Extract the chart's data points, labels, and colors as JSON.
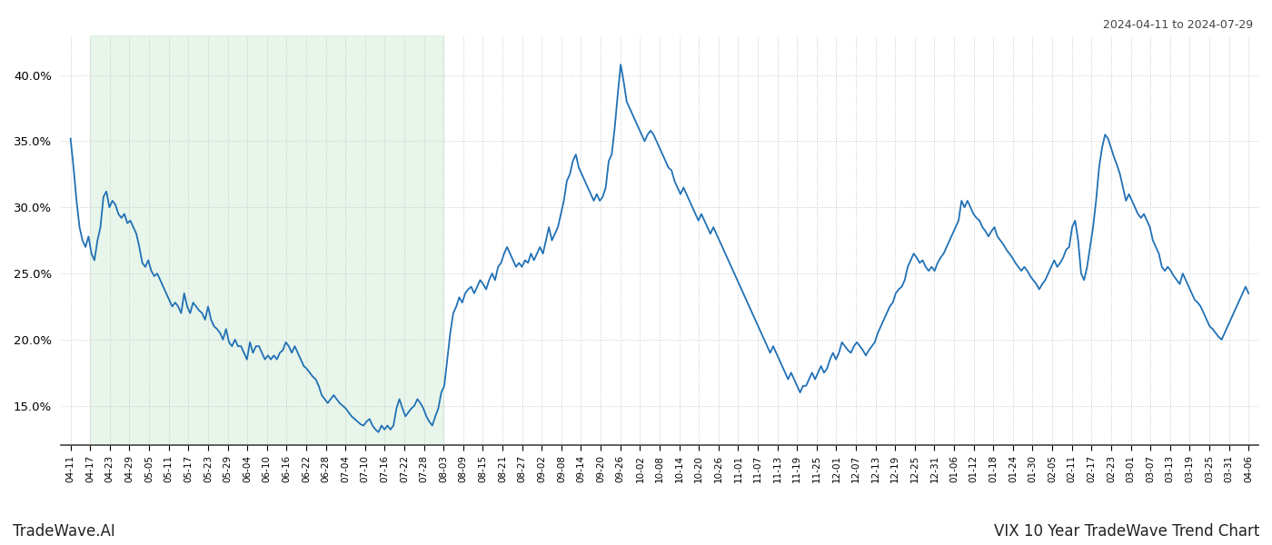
{
  "title_right": "2024-04-11 to 2024-07-29",
  "title_bottom_left": "TradeWave.AI",
  "title_bottom_right": "VIX 10 Year TradeWave Trend Chart",
  "line_color": "#2171b5",
  "shade_color": "#d4edda",
  "shade_alpha": 0.55,
  "background_color": "#ffffff",
  "grid_color": "#c8c8c8",
  "ylim": [
    12.0,
    43.0
  ],
  "yticks": [
    15.0,
    20.0,
    25.0,
    30.0,
    35.0,
    40.0
  ],
  "x_labels": [
    "04-11",
    "04-17",
    "04-23",
    "04-29",
    "05-05",
    "05-11",
    "05-17",
    "05-23",
    "05-29",
    "06-04",
    "06-10",
    "06-16",
    "06-22",
    "06-28",
    "07-04",
    "07-10",
    "07-16",
    "07-22",
    "07-28",
    "08-03",
    "08-09",
    "08-15",
    "08-21",
    "08-27",
    "09-02",
    "09-08",
    "09-14",
    "09-20",
    "09-26",
    "10-02",
    "10-08",
    "10-14",
    "10-20",
    "10-26",
    "11-01",
    "11-07",
    "11-13",
    "11-19",
    "11-25",
    "12-01",
    "12-07",
    "12-13",
    "12-19",
    "12-25",
    "12-31",
    "01-06",
    "01-12",
    "01-18",
    "01-24",
    "01-30",
    "02-05",
    "02-11",
    "02-17",
    "02-23",
    "03-01",
    "03-07",
    "03-13",
    "03-19",
    "03-25",
    "03-31",
    "04-06"
  ],
  "shade_start_label": "04-17",
  "shade_end_label": "08-03",
  "y_values": [
    35.2,
    33.0,
    30.5,
    28.5,
    27.5,
    27.0,
    27.8,
    26.5,
    26.0,
    27.5,
    28.5,
    30.8,
    31.2,
    30.0,
    30.5,
    30.2,
    29.5,
    29.2,
    29.5,
    28.8,
    29.0,
    28.5,
    28.0,
    27.0,
    25.8,
    25.5,
    26.0,
    25.2,
    24.8,
    25.0,
    24.5,
    24.0,
    23.5,
    23.0,
    22.5,
    22.8,
    22.5,
    22.0,
    23.5,
    22.5,
    22.0,
    22.8,
    22.5,
    22.2,
    22.0,
    21.5,
    22.5,
    21.5,
    21.0,
    20.8,
    20.5,
    20.0,
    20.8,
    19.8,
    19.5,
    20.0,
    19.5,
    19.5,
    19.0,
    18.5,
    19.8,
    19.0,
    19.5,
    19.5,
    19.0,
    18.5,
    18.8,
    18.5,
    18.8,
    18.5,
    19.0,
    19.2,
    19.8,
    19.5,
    19.0,
    19.5,
    19.0,
    18.5,
    18.0,
    17.8,
    17.5,
    17.2,
    17.0,
    16.5,
    15.8,
    15.5,
    15.2,
    15.5,
    15.8,
    15.5,
    15.2,
    15.0,
    14.8,
    14.5,
    14.2,
    14.0,
    13.8,
    13.6,
    13.5,
    13.8,
    14.0,
    13.5,
    13.2,
    13.0,
    13.5,
    13.2,
    13.5,
    13.2,
    13.5,
    14.8,
    15.5,
    14.8,
    14.2,
    14.5,
    14.8,
    15.0,
    15.5,
    15.2,
    14.8,
    14.2,
    13.8,
    13.5,
    14.2,
    14.8,
    16.0,
    16.5,
    18.5,
    20.5,
    22.0,
    22.5,
    23.2,
    22.8,
    23.5,
    23.8,
    24.0,
    23.5,
    24.0,
    24.5,
    24.2,
    23.8,
    24.5,
    25.0,
    24.5,
    25.5,
    25.8,
    26.5,
    27.0,
    26.5,
    26.0,
    25.5,
    25.8,
    25.5,
    26.0,
    25.8,
    26.5,
    26.0,
    26.5,
    27.0,
    26.5,
    27.5,
    28.5,
    27.5,
    28.0,
    28.5,
    29.5,
    30.5,
    32.0,
    32.5,
    33.5,
    34.0,
    33.0,
    32.5,
    32.0,
    31.5,
    31.0,
    30.5,
    31.0,
    30.5,
    30.8,
    31.5,
    33.5,
    34.0,
    36.0,
    38.5,
    40.8,
    39.5,
    38.0,
    37.5,
    37.0,
    36.5,
    36.0,
    35.5,
    35.0,
    35.5,
    35.8,
    35.5,
    35.0,
    34.5,
    34.0,
    33.5,
    33.0,
    32.8,
    32.0,
    31.5,
    31.0,
    31.5,
    31.0,
    30.5,
    30.0,
    29.5,
    29.0,
    29.5,
    29.0,
    28.5,
    28.0,
    28.5,
    28.0,
    27.5,
    27.0,
    26.5,
    26.0,
    25.5,
    25.0,
    24.5,
    24.0,
    23.5,
    23.0,
    22.5,
    22.0,
    21.5,
    21.0,
    20.5,
    20.0,
    19.5,
    19.0,
    19.5,
    19.0,
    18.5,
    18.0,
    17.5,
    17.0,
    17.5,
    17.0,
    16.5,
    16.0,
    16.5,
    16.5,
    17.0,
    17.5,
    17.0,
    17.5,
    18.0,
    17.5,
    17.8,
    18.5,
    19.0,
    18.5,
    19.0,
    19.8,
    19.5,
    19.2,
    19.0,
    19.5,
    19.8,
    19.5,
    19.2,
    18.8,
    19.2,
    19.5,
    19.8,
    20.5,
    21.0,
    21.5,
    22.0,
    22.5,
    22.8,
    23.5,
    23.8,
    24.0,
    24.5,
    25.5,
    26.0,
    26.5,
    26.2,
    25.8,
    26.0,
    25.5,
    25.2,
    25.5,
    25.2,
    25.8,
    26.2,
    26.5,
    27.0,
    27.5,
    28.0,
    28.5,
    29.0,
    30.5,
    30.0,
    30.5,
    30.0,
    29.5,
    29.2,
    29.0,
    28.5,
    28.2,
    27.8,
    28.2,
    28.5,
    27.8,
    27.5,
    27.2,
    26.8,
    26.5,
    26.2,
    25.8,
    25.5,
    25.2,
    25.5,
    25.2,
    24.8,
    24.5,
    24.2,
    23.8,
    24.2,
    24.5,
    25.0,
    25.5,
    26.0,
    25.5,
    25.8,
    26.2,
    26.8,
    27.0,
    28.5,
    29.0,
    27.5,
    25.0,
    24.5,
    25.5,
    27.0,
    28.5,
    30.5,
    33.0,
    34.5,
    35.5,
    35.2,
    34.5,
    33.8,
    33.2,
    32.5,
    31.5,
    30.5,
    31.0,
    30.5,
    30.0,
    29.5,
    29.2,
    29.5,
    29.0,
    28.5,
    27.5,
    27.0,
    26.5,
    25.5,
    25.2,
    25.5,
    25.2,
    24.8,
    24.5,
    24.2,
    25.0,
    24.5,
    24.0,
    23.5,
    23.0,
    22.8,
    22.5,
    22.0,
    21.5,
    21.0,
    20.8,
    20.5,
    20.2,
    20.0,
    20.5,
    21.0,
    21.5,
    22.0,
    22.5,
    23.0,
    23.5,
    24.0,
    23.5
  ]
}
